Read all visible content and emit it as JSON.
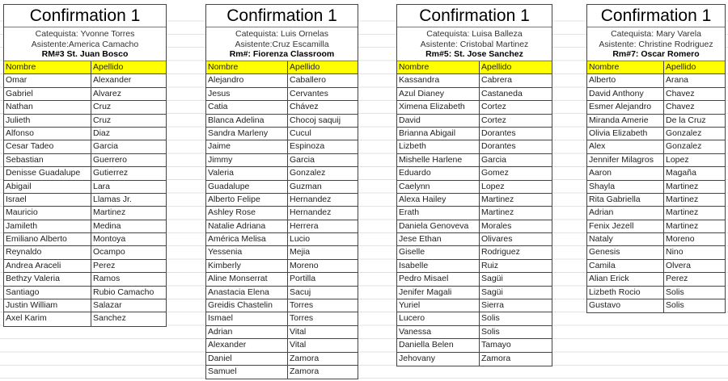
{
  "header_color": "#ffff00",
  "rosters": [
    {
      "title": "Confirmation 1",
      "catequista": "Catequista: Yvonne Torres",
      "asistente": "Asistente:America Camacho",
      "room": "RM#3 St. Juan Bosco",
      "columns": [
        "Nombre",
        "Apellido"
      ],
      "rows": [
        [
          "Omar",
          "Alexander"
        ],
        [
          "Gabriel",
          "Alvarez"
        ],
        [
          "Nathan",
          "Cruz"
        ],
        [
          "Julieth",
          "Cruz"
        ],
        [
          "Alfonso",
          "Diaz"
        ],
        [
          "Cesar Tadeo",
          "Garcia"
        ],
        [
          "Sebastian",
          "Guerrero"
        ],
        [
          "Denisse Guadalupe",
          "Gutierrez"
        ],
        [
          "Abigail",
          "Lara"
        ],
        [
          "Israel",
          "Llamas Jr."
        ],
        [
          "Mauricio",
          "Martinez"
        ],
        [
          "Jamileth",
          "Medina"
        ],
        [
          "Emiliano Alberto",
          "Montoya"
        ],
        [
          "Reynaldo",
          "Ocampo"
        ],
        [
          "Andrea Araceli",
          "Perez"
        ],
        [
          "Bethzy Valeria",
          "Ramos"
        ],
        [
          "Santiago",
          "Rubio Camacho"
        ],
        [
          "Justin William",
          "Salazar"
        ],
        [
          "Axel Karim",
          "Sanchez"
        ]
      ]
    },
    {
      "title": "Confirmation 1",
      "catequista": "Catequista: Luis Ornelas",
      "asistente": "Asistente:Cruz Escamilla",
      "room": "Rm#: Fiorenza Classroom",
      "columns": [
        "Nombre",
        "Apellido"
      ],
      "rows": [
        [
          "Alejandro",
          "Caballero"
        ],
        [
          "Jesus",
          "Cervantes"
        ],
        [
          "Catia",
          "Chávez"
        ],
        [
          "Blanca Adelina",
          "Chocoj saquij"
        ],
        [
          "Sandra Marleny",
          "Cucul"
        ],
        [
          "Jaime",
          "Espinoza"
        ],
        [
          "Jimmy",
          "Garcia"
        ],
        [
          "Valeria",
          "Gonzalez"
        ],
        [
          "Guadalupe",
          "Guzman"
        ],
        [
          "Alberto Felipe",
          "Hernandez"
        ],
        [
          "Ashley Rose",
          "Hernandez"
        ],
        [
          "Natalie Adriana",
          "Herrera"
        ],
        [
          "América Melisa",
          "Lucio"
        ],
        [
          "Yessenia",
          "Mejia"
        ],
        [
          "Kimberly",
          "Moreno"
        ],
        [
          "Aline Monserrat",
          "Portilla"
        ],
        [
          "Anastacia Elena",
          "Sacuj"
        ],
        [
          "Greidis Chastelin",
          "Torres"
        ],
        [
          "Ismael",
          "Torres"
        ],
        [
          "Adrian",
          "Vital"
        ],
        [
          "Alexander",
          "Vital"
        ],
        [
          "Daniel",
          "Zamora"
        ],
        [
          "Samuel",
          "Zamora"
        ]
      ]
    },
    {
      "title": "Confirmation 1",
      "catequista": "Catequista: Luisa Balleza",
      "asistente": "Asistente: Cristobal Martinez",
      "room": "Rm#5: St. Jose Sanchez",
      "columns": [
        "Nombre",
        "Apellido"
      ],
      "rows": [
        [
          "Kassandra",
          "Cabrera"
        ],
        [
          "Azul Dianey",
          "Castaneda"
        ],
        [
          "Ximena Elizabeth",
          "Cortez"
        ],
        [
          "David",
          "Cortez"
        ],
        [
          "Brianna Abigail",
          "Dorantes"
        ],
        [
          "Lizbeth",
          "Dorantes"
        ],
        [
          "Mishelle Harlene",
          "Garcia"
        ],
        [
          "Eduardo",
          "Gomez"
        ],
        [
          "Caelynn",
          "Lopez"
        ],
        [
          "Alexa Hailey",
          "Martinez"
        ],
        [
          "Erath",
          "Martinez"
        ],
        [
          "Daniela Genoveva",
          "Morales"
        ],
        [
          "Jese Ethan",
          "Olivares"
        ],
        [
          "Giselle",
          "Rodriguez"
        ],
        [
          "Isabelle",
          "Ruiz"
        ],
        [
          "Pedro Misael",
          "Sagüi"
        ],
        [
          "Jenifer Magali",
          "Sagüi"
        ],
        [
          "Yuriel",
          "Sierra"
        ],
        [
          "Lucero",
          "Solis"
        ],
        [
          "Vanessa",
          "Solis"
        ],
        [
          "Daniella Belen",
          "Tamayo"
        ],
        [
          "Jehovany",
          "Zamora"
        ]
      ]
    },
    {
      "title": "Confirmation 1",
      "catequista": "Catequista: Mary Varela",
      "asistente": "Asistente: Christine Rodriguez",
      "room": "Rm#7: Oscar Romero",
      "columns": [
        "Nombre",
        "Apellido"
      ],
      "rows": [
        [
          "Alberto",
          "Arana"
        ],
        [
          "David Anthony",
          "Chavez"
        ],
        [
          "Esmer Alejandro",
          "Chavez"
        ],
        [
          "Miranda Amerie",
          "De la Cruz"
        ],
        [
          "Olivia Elizabeth",
          "Gonzalez"
        ],
        [
          "Alex",
          "Gonzalez"
        ],
        [
          "Jennifer Milagros",
          "Lopez"
        ],
        [
          "Aaron",
          "Magaña"
        ],
        [
          "Shayla",
          "Martinez"
        ],
        [
          "Rita Gabriella",
          "Martinez"
        ],
        [
          "Adrian",
          "Martinez"
        ],
        [
          "Fenix Jezell",
          "Martinez"
        ],
        [
          "Nataly",
          "Moreno"
        ],
        [
          "Genesis",
          "Nino"
        ],
        [
          "Camila",
          "Olvera"
        ],
        [
          "Alian Erick",
          "Perez"
        ],
        [
          "Lizbeth Rocio",
          "Solis"
        ],
        [
          "Gustavo",
          "Solis"
        ]
      ]
    }
  ]
}
